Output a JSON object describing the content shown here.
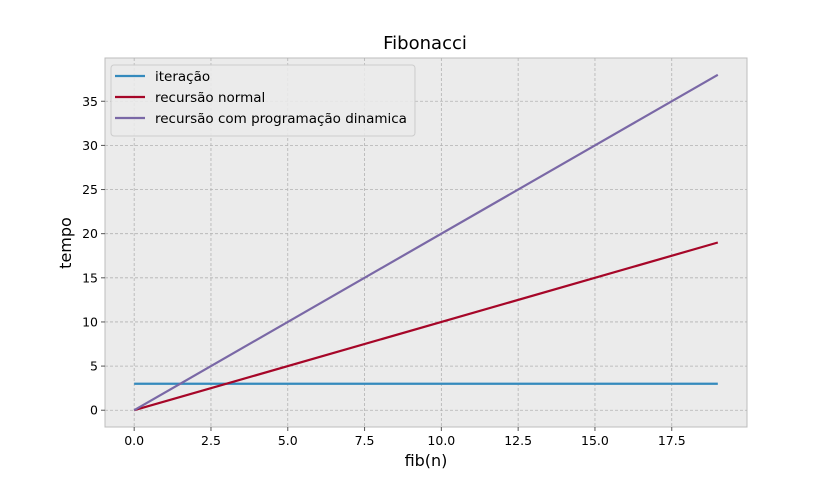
{
  "chart_data": {
    "type": "line",
    "title": "Fibonacci",
    "xlabel": "fib(n)",
    "ylabel": "tempo",
    "xlim": [
      -0.95,
      19.95
    ],
    "ylim": [
      -1.9,
      39.9
    ],
    "xticks": [
      0.0,
      2.5,
      5.0,
      7.5,
      10.0,
      12.5,
      15.0,
      17.5
    ],
    "xtick_labels": [
      "0.0",
      "2.5",
      "5.0",
      "7.5",
      "10.0",
      "12.5",
      "15.0",
      "17.5"
    ],
    "yticks": [
      0,
      5,
      10,
      15,
      20,
      25,
      30,
      35
    ],
    "ytick_labels": [
      "0",
      "5",
      "10",
      "15",
      "20",
      "25",
      "30",
      "35"
    ],
    "grid": true,
    "legend_position": "top-left",
    "background": "#ebebeb",
    "series": [
      {
        "name": "iteração",
        "color": "#348abd",
        "x": [
          0,
          19
        ],
        "y": [
          3,
          3
        ]
      },
      {
        "name": "recursão normal",
        "color": "#a60628",
        "x": [
          0,
          19
        ],
        "y": [
          0,
          19
        ]
      },
      {
        "name": "recursão com programação dinamica",
        "color": "#7a68a6",
        "x": [
          0,
          19
        ],
        "y": [
          0,
          38
        ]
      }
    ]
  }
}
